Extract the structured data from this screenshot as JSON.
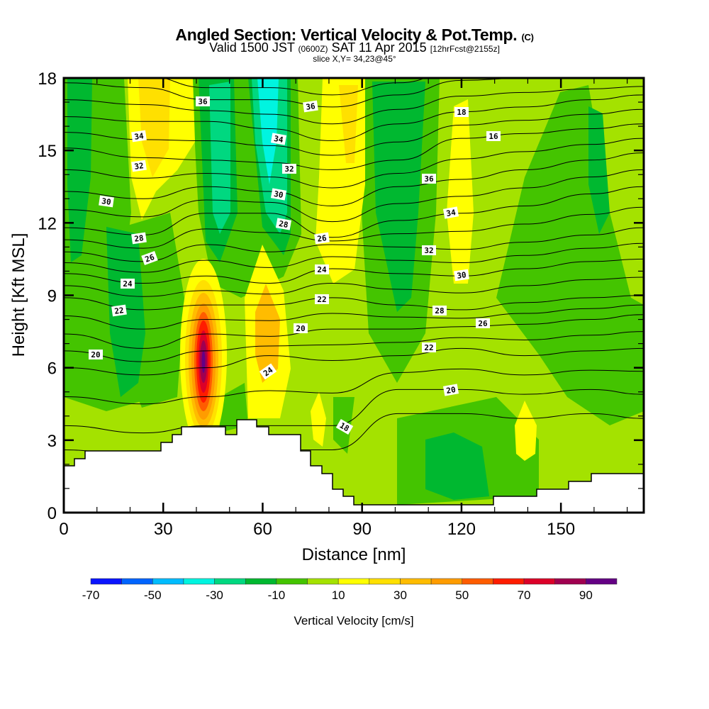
{
  "header": {
    "title": "Angled Section: Vertical Velocity & Pot.Temp.",
    "title_mark": "(C)",
    "valid_a": "Valid 1500 JST",
    "valid_z": "(0600Z)",
    "valid_b": "SAT 11 Apr 2015",
    "valid_fcst": "[12hrFcst@2155z]",
    "slice": "slice X,Y= 34,23@45°"
  },
  "chart_data": {
    "type": "heatmap",
    "title": "Angled Section: Vertical Velocity & Pot.Temp.",
    "xlabel": "Distance [nm]",
    "ylabel": "Height [Kft MSL]",
    "xlim": [
      0,
      175
    ],
    "ylim": [
      0,
      18
    ],
    "xticks": [
      "0",
      "30",
      "60",
      "90",
      "120",
      "150"
    ],
    "yticks": [
      "0",
      "3",
      "6",
      "9",
      "12",
      "15",
      "18"
    ],
    "colorbar": {
      "label": "Vertical Velocity [cm/s]",
      "levels": [
        -70,
        -60,
        -50,
        -40,
        -30,
        -20,
        -10,
        0,
        10,
        20,
        30,
        40,
        50,
        60,
        70,
        80,
        90,
        100
      ],
      "tick_labels": [
        "-70",
        "-50",
        "-30",
        "-10",
        "10",
        "30",
        "50",
        "70",
        "90"
      ],
      "colors": [
        "#0a14ff",
        "#0064ff",
        "#00bcff",
        "#00f4e0",
        "#00d880",
        "#00b830",
        "#44c400",
        "#a4e200",
        "#ffff00",
        "#ffe000",
        "#ffbc00",
        "#ff9c00",
        "#ff5c00",
        "#ff1c00",
        "#dc0028",
        "#a00050",
        "#640084"
      ]
    },
    "contours": {
      "variable": "Potential temperature (°C)",
      "distance_nm": [
        0,
        24,
        43,
        62,
        81,
        101,
        120,
        139,
        159,
        175
      ],
      "levels": {
        "16": [
          3.6,
          3.3,
          3.6,
          3.6,
          3.6,
          5.1,
          5.1,
          4.9,
          5.1,
          4.9
        ],
        "18": [
          6.0,
          5.7,
          6.0,
          6.5,
          6.3,
          6.5,
          6.8,
          6.5,
          6.7,
          6.8
        ],
        "20": [
          7.4,
          6.8,
          7.4,
          7.3,
          7.6,
          7.6,
          7.7,
          7.8,
          8.0,
          8.2
        ],
        "22": [
          8.9,
          8.4,
          8.6,
          8.6,
          8.9,
          8.6,
          8.4,
          8.7,
          8.9,
          9.0
        ],
        "24": [
          9.9,
          9.5,
          9.8,
          9.5,
          10.1,
          9.9,
          9.8,
          10.1,
          10.4,
          10.5
        ],
        "26": [
          10.8,
          10.4,
          11.1,
          10.8,
          11.1,
          11.0,
          10.9,
          11.2,
          11.5,
          11.8
        ],
        "28": [
          11.8,
          11.5,
          12.4,
          12.4,
          11.4,
          12.1,
          12.4,
          12.7,
          13.2,
          13.5
        ],
        "30": [
          13.3,
          13.0,
          13.5,
          13.3,
          12.7,
          13.5,
          13.8,
          14.2,
          14.6,
          14.9
        ],
        "32": [
          15.1,
          14.7,
          14.6,
          14.5,
          14.2,
          14.6,
          15.5,
          15.7,
          15.9,
          16.1
        ],
        "34": [
          16.4,
          16.2,
          16.2,
          15.9,
          15.4,
          16.1,
          16.6,
          16.8,
          17.1,
          17.3
        ],
        "36": [
          17.8,
          17.6,
          17.1,
          17.1,
          16.8,
          17.3,
          17.9,
          18.0,
          18.0,
          18.0
        ]
      },
      "labels": [
        "36",
        "34",
        "32",
        "30",
        "28",
        "26",
        "24",
        "22",
        "20",
        "36",
        "34",
        "32",
        "30",
        "28",
        "26",
        "24",
        "22",
        "20",
        "18",
        "16",
        "36",
        "34",
        "32",
        "30",
        "28",
        "26",
        "24",
        "22",
        "20",
        "18",
        "16"
      ]
    },
    "max_updraft": {
      "distance_nm": 42,
      "height_kft": 6.5,
      "value_cm_s": 95
    }
  }
}
